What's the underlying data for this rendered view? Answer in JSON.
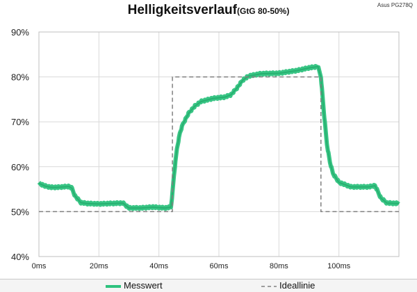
{
  "title": "Helligkeitsverlauf",
  "subtitle": "(GtG 80-50%)",
  "corner_label": "Asus PG278Q",
  "colors": {
    "measured": "#2ec27e",
    "ideal": "#808080",
    "grid": "#d9d9d9"
  },
  "chart_data": {
    "type": "line",
    "title": "Helligkeitsverlauf",
    "subtitle": "(GtG 80-50%)",
    "xlabel": "",
    "ylabel": "",
    "x_unit": "ms",
    "xlim": [
      0,
      120
    ],
    "ylim": [
      40,
      90
    ],
    "x_ticks": [
      "0ms",
      "20ms",
      "40ms",
      "60ms",
      "80ms",
      "100ms"
    ],
    "y_ticks": [
      "40%",
      "50%",
      "60%",
      "70%",
      "80%",
      "90%"
    ],
    "grid": true,
    "legend_position": "bottom",
    "series": [
      {
        "name": "Messwert",
        "style": "solid",
        "x": [
          0,
          2,
          4,
          6,
          8,
          10,
          11,
          12,
          14,
          16,
          20,
          24,
          28,
          30,
          34,
          38,
          42,
          44,
          44.5,
          45,
          46,
          47,
          48,
          50,
          52,
          54,
          58,
          62,
          64,
          66,
          68,
          70,
          74,
          80,
          86,
          90,
          93,
          94,
          95,
          96,
          97,
          98,
          100,
          104,
          110,
          112,
          114,
          116,
          120
        ],
        "y": [
          56.3,
          55.7,
          55.4,
          55.4,
          55.5,
          55.6,
          55.2,
          53.5,
          52.0,
          51.8,
          51.7,
          51.8,
          51.9,
          50.8,
          50.8,
          51.0,
          50.8,
          51.0,
          54.0,
          58.0,
          64.0,
          67.5,
          69.5,
          72.0,
          73.5,
          74.5,
          75.2,
          75.5,
          76.0,
          77.5,
          79.3,
          80.2,
          80.7,
          80.8,
          81.4,
          82.0,
          82.3,
          80.0,
          72.0,
          65.0,
          61.0,
          58.5,
          56.5,
          55.5,
          55.5,
          55.8,
          53.0,
          51.9,
          51.8
        ]
      },
      {
        "name": "Ideallinie",
        "style": "dashed",
        "x": [
          0,
          44.5,
          44.5,
          94,
          94,
          120
        ],
        "y": [
          50,
          50,
          80,
          80,
          50,
          50
        ]
      }
    ]
  }
}
